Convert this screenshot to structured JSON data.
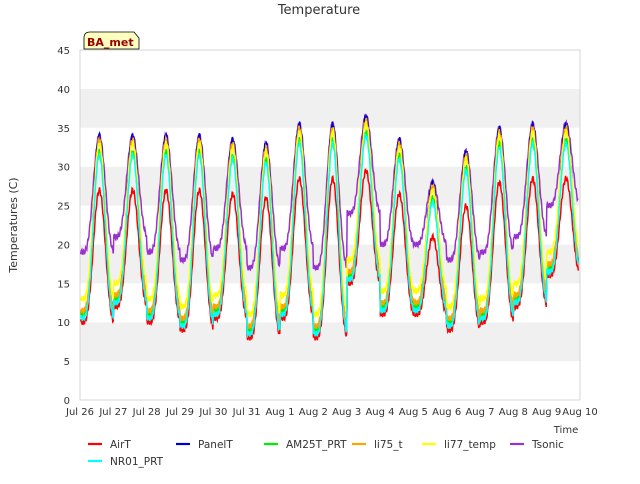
{
  "chart_data": {
    "type": "line",
    "title": "Temperature",
    "xlabel": "Time",
    "ylabel": "Temperatures (C)",
    "badge": "BA_met",
    "ylim": [
      0,
      45
    ],
    "yticks": [
      0,
      5,
      10,
      15,
      20,
      25,
      30,
      35,
      40,
      45
    ],
    "xlim": [
      "2024-07-26",
      "2024-08-10"
    ],
    "xtick_labels": [
      "Jul 26",
      "Jul 27",
      "Jul 28",
      "Jul 29",
      "Jul 30",
      "Jul 31",
      "Aug 1",
      "Aug 2",
      "Aug 3",
      "Aug 4",
      "Aug 5",
      "Aug 6",
      "Aug 7",
      "Aug 8",
      "Aug 9",
      "Aug 10"
    ],
    "grid": "horizontal bands",
    "legend_position": "bottom",
    "daily": {
      "days": [
        "Jul 26",
        "Jul 27",
        "Jul 28",
        "Jul 29",
        "Jul 30",
        "Jul 31",
        "Aug 1",
        "Aug 2",
        "Aug 3",
        "Aug 4",
        "Aug 5",
        "Aug 6",
        "Aug 7",
        "Aug 8",
        "Aug 9"
      ],
      "min_by_day": [
        10,
        12,
        10,
        9,
        10.5,
        8,
        10.5,
        8,
        15,
        11,
        11,
        9,
        10,
        12,
        16
      ],
      "max_by_day": [
        27,
        27,
        27,
        27,
        26.5,
        26,
        28.5,
        28.5,
        29.5,
        26.5,
        21,
        25,
        28,
        28.5,
        28.5
      ]
    },
    "series": [
      {
        "name": "AirT",
        "color": "#ff0000",
        "offset_max": 0,
        "offset_min": 0
      },
      {
        "name": "PanelT",
        "color": "#0000cc",
        "offset_max": 7,
        "offset_min": 1
      },
      {
        "name": "AM25T_PRT",
        "color": "#00ee00",
        "offset_max": 5,
        "offset_min": 1
      },
      {
        "name": "li75_t",
        "color": "#ffa500",
        "offset_max": 6.5,
        "offset_min": 1.5
      },
      {
        "name": "li77_temp",
        "color": "#ffff00",
        "offset_max": 6,
        "offset_min": 3
      },
      {
        "name": "Tsonic",
        "color": "#9932cc",
        "offset_max": 7,
        "offset_min": 9
      },
      {
        "name": "NR01_PRT",
        "color": "#00ffff",
        "offset_max": 4.5,
        "offset_min": 0.5
      }
    ]
  }
}
